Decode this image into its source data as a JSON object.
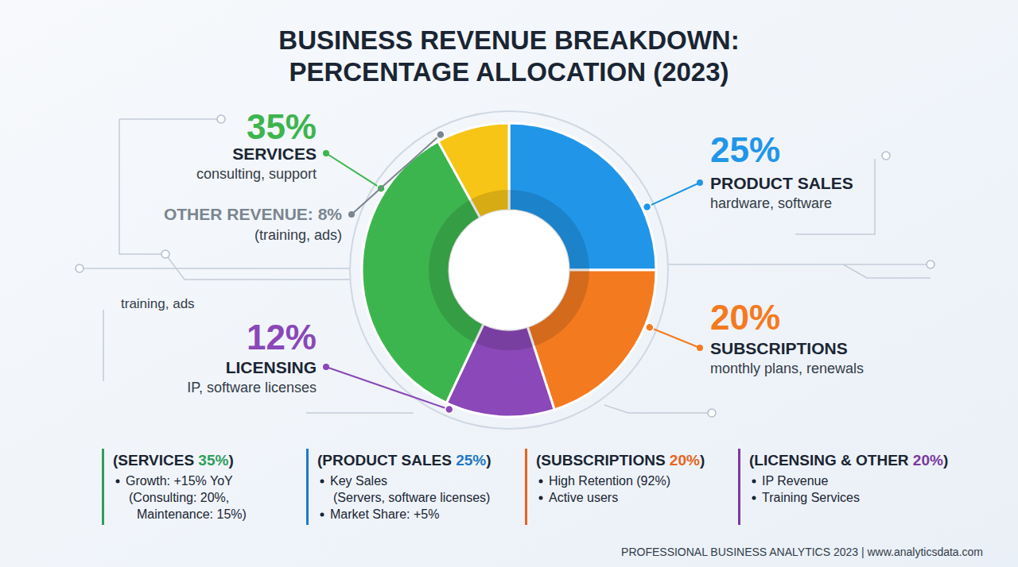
{
  "chart_data": {
    "type": "donut",
    "title": "BUSINESS REVENUE BREAKDOWN: PERCENTAGE ALLOCATION (2023)",
    "categories": [
      "PRODUCT SALES",
      "SUBSCRIPTIONS",
      "LICENSING",
      "SERVICES",
      null
    ],
    "values": [
      25,
      20,
      12,
      35,
      8
    ],
    "value_labels": [
      "25%",
      "20%",
      "12%",
      "35%",
      "OTHER REVENUE: 8%"
    ],
    "sublabels": [
      "hardware, software",
      "monthly plans, renewals",
      "IP, software licenses",
      "consulting, support",
      "(training, ads)"
    ],
    "colors": [
      "#2196e8",
      "#f47a20",
      "#8a48b8",
      "#3db54f",
      "#f6c516"
    ],
    "annotations": [
      "training, ads"
    ],
    "data_labels": true
  },
  "panels": [
    {
      "heading": [
        "(SERVICES ",
        "35%",
        ")"
      ],
      "color": "#2e9e5b",
      "items": [
        [
          "Growth: +15% YoY",
          "(Consulting: 20%,",
          "Maintenance: 15%)"
        ]
      ]
    },
    {
      "heading": [
        "(PRODUCT SALES ",
        "25%",
        ")"
      ],
      "color": "#1f78c8",
      "items": [
        [
          "Key Sales",
          "(Servers, software licenses)"
        ],
        [
          "Market Share: +5%"
        ]
      ]
    },
    {
      "heading": [
        "(SUBSCRIPTIONS ",
        "20%",
        ")"
      ],
      "color": "#e8641c",
      "items": [
        [
          "High Retention (92%)"
        ],
        [
          "Active users"
        ]
      ]
    },
    {
      "heading": [
        "(LICENSING & OTHER ",
        "20%",
        ")"
      ],
      "color": "#7a3aa0",
      "items": [
        [
          "IP Revenue"
        ],
        [
          "Training Services"
        ]
      ]
    }
  ],
  "footer": "PROFESSIONAL BUSINESS ANALYTICS 2023 | www.analyticsdata.com"
}
